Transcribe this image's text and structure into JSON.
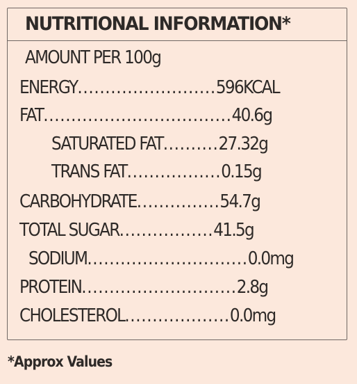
{
  "title": "NUTRITIONAL INFORMATION*",
  "amount_label": "AMOUNT PER 100g",
  "rows": [
    {
      "label": "ENERGY",
      "dots": ".........................",
      "value": "596KCAL"
    },
    {
      "label": "FAT",
      "dots": "..................................",
      "value": "40.6g"
    },
    {
      "label": "SATURATED FAT",
      "dots": "..........",
      "value": "27.32g"
    },
    {
      "label": "TRANS FAT",
      "dots": ".................",
      "value": "0.15g"
    },
    {
      "label": "CARBOHYDRATE",
      "dots": "...............",
      "value": "54.7g"
    },
    {
      "label": "TOTAL SUGAR",
      "dots": ".................",
      "value": "41.5g"
    },
    {
      "label": "SODIUM",
      "dots": ".............................",
      "value": "0.0mg"
    },
    {
      "label": "PROTEIN",
      "dots": "............................",
      "value": "2.8g"
    },
    {
      "label": "CHOLESTEROL",
      "dots": "...................",
      "value": "0.0mg"
    }
  ],
  "footnote": "*Approx Values"
}
